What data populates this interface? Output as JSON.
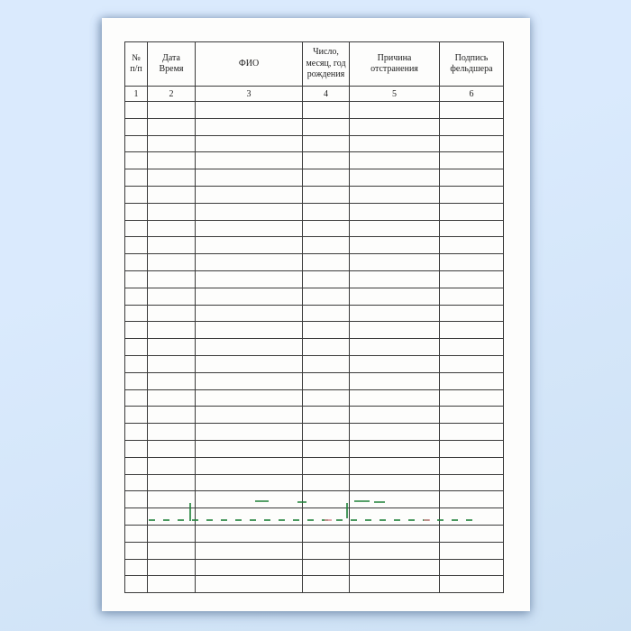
{
  "colors": {
    "background_top": "#daeafd",
    "background_bottom": "#cde1f4",
    "page": "#fdfdfc",
    "table_line": "#3a3a3a",
    "text": "#1c1c1c",
    "watermark_green": "#1d8038",
    "watermark_pink": "#d98f96"
  },
  "document": {
    "table": {
      "headers": [
        {
          "lines": [
            "№",
            "п/п"
          ],
          "col_number": "1"
        },
        {
          "lines": [
            "Дата",
            "Время"
          ],
          "col_number": "2"
        },
        {
          "lines": [
            "ФИО"
          ],
          "col_number": "3"
        },
        {
          "lines": [
            "Число,",
            "месяц, год",
            "рождения"
          ],
          "col_number": "4"
        },
        {
          "lines": [
            "Причина",
            "отстранения"
          ],
          "col_number": "5"
        },
        {
          "lines": [
            "Подпись",
            "фельдшера"
          ],
          "col_number": "6"
        }
      ],
      "empty_rows": 29,
      "columns_count": 6
    }
  }
}
